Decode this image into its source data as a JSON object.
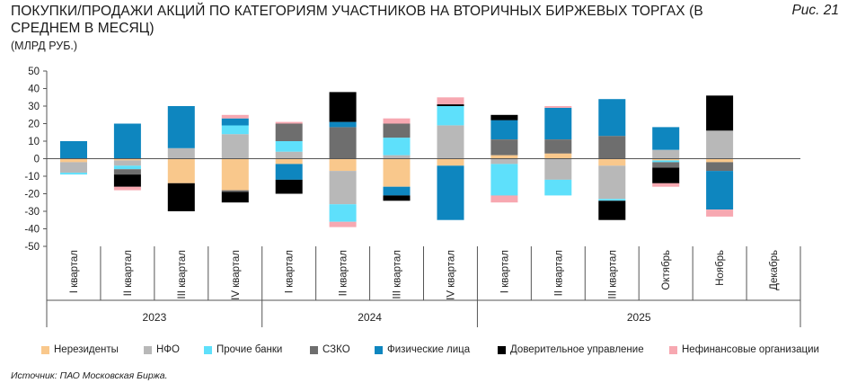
{
  "header": {
    "title": "ПОКУПКИ/ПРОДАЖИ АКЦИЙ ПО КАТЕГОРИЯМ УЧАСТНИКОВ НА ВТОРИЧНЫХ БИРЖЕВЫХ ТОРГАХ (В СРЕДНЕМ В МЕСЯЦ)",
    "figure_label": "Рис. 21",
    "subtitle": "(МЛРД РУБ.)"
  },
  "source": "Источник: ПАО Московская Биржа.",
  "chart_data": {
    "type": "bar",
    "stacked": true,
    "categories": [
      "I квартал",
      "II квартал",
      "III квартал",
      "IV квартал",
      "I квартал",
      "II квартал",
      "III квартал",
      "IV квартал",
      "I квартал",
      "II квартал",
      "III квартал",
      "Октябрь",
      "Ноябрь",
      "Декабрь"
    ],
    "groups": [
      {
        "label": "2023",
        "span": 4
      },
      {
        "label": "2024",
        "span": 4
      },
      {
        "label": "2025",
        "span": 6
      }
    ],
    "ylim": [
      -50,
      50
    ],
    "yticks": [
      50,
      40,
      30,
      20,
      10,
      0,
      -10,
      -20,
      -30,
      -40,
      -50
    ],
    "grid": false,
    "legend_position": "bottom",
    "series": [
      {
        "name": "Нерезиденты",
        "color": "#f9c88c",
        "values": [
          -2,
          -1,
          -14,
          -18,
          -3,
          -7,
          -16,
          -4,
          2,
          3,
          -4,
          -1,
          -2,
          0
        ]
      },
      {
        "name": "НФО",
        "color": "#b8b8b8",
        "values": [
          -6,
          -3,
          6,
          14,
          4,
          -19,
          2,
          19,
          -3,
          -12,
          -19,
          5,
          16,
          0
        ]
      },
      {
        "name": "Прочие банки",
        "color": "#5ee0fb",
        "values": [
          -1,
          -2,
          0,
          5,
          6,
          -10,
          10,
          11,
          -18,
          -9,
          -1,
          -1,
          0,
          0
        ]
      },
      {
        "name": "СЗКО",
        "color": "#6e6e6e",
        "values": [
          0,
          -3,
          0,
          -1,
          10,
          18,
          8,
          0,
          9,
          8,
          13,
          -3,
          -5,
          0
        ]
      },
      {
        "name": "Физические лица",
        "color": "#0e86bf",
        "values": [
          10,
          20,
          24,
          4,
          -9,
          3,
          -5,
          -31,
          11,
          18,
          21,
          13,
          -22,
          0
        ]
      },
      {
        "name": "Доверительное управление",
        "color": "#000000",
        "values": [
          0,
          -7,
          -16,
          -6,
          -8,
          17,
          -3,
          1,
          3,
          0,
          -11,
          -9,
          20,
          0
        ]
      },
      {
        "name": "Нефинансовые организации",
        "color": "#f7a8b1",
        "values": [
          0,
          -2,
          0,
          2,
          1,
          -3,
          3,
          4,
          -4,
          1,
          0,
          -2,
          -4,
          0
        ]
      }
    ]
  }
}
